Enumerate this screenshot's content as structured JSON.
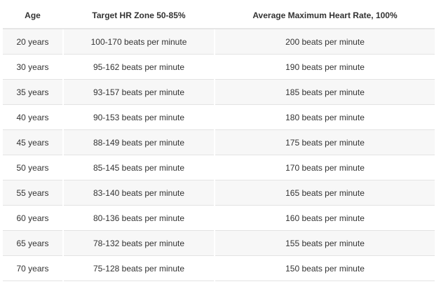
{
  "table": {
    "headers": [
      "Age",
      "Target HR Zone 50-85%",
      "Average Maximum Heart Rate, 100%"
    ],
    "rows": [
      [
        "20 years",
        "100-170 beats per minute",
        "200 beats per minute"
      ],
      [
        "30 years",
        "95-162 beats per minute",
        "190 beats per minute"
      ],
      [
        "35 years",
        "93-157 beats per minute",
        "185 beats per minute"
      ],
      [
        "40 years",
        "90-153 beats per minute",
        "180 beats per minute"
      ],
      [
        "45 years",
        "88-149 beats per minute",
        "175 beats per minute"
      ],
      [
        "50 years",
        "85-145 beats per minute",
        "170 beats per minute"
      ],
      [
        "55 years",
        "83-140 beats per minute",
        "165 beats per minute"
      ],
      [
        "60 years",
        "80-136 beats per minute",
        "160 beats per minute"
      ],
      [
        "65 years",
        "78-132 beats per minute",
        "155 beats per minute"
      ],
      [
        "70 years",
        "75-128 beats per minute",
        "150 beats per minute"
      ]
    ]
  },
  "colors": {
    "text": "#333333",
    "row_stripe": "#f7f7f7",
    "row_plain": "#ffffff",
    "divider": "#e3e3e3"
  }
}
